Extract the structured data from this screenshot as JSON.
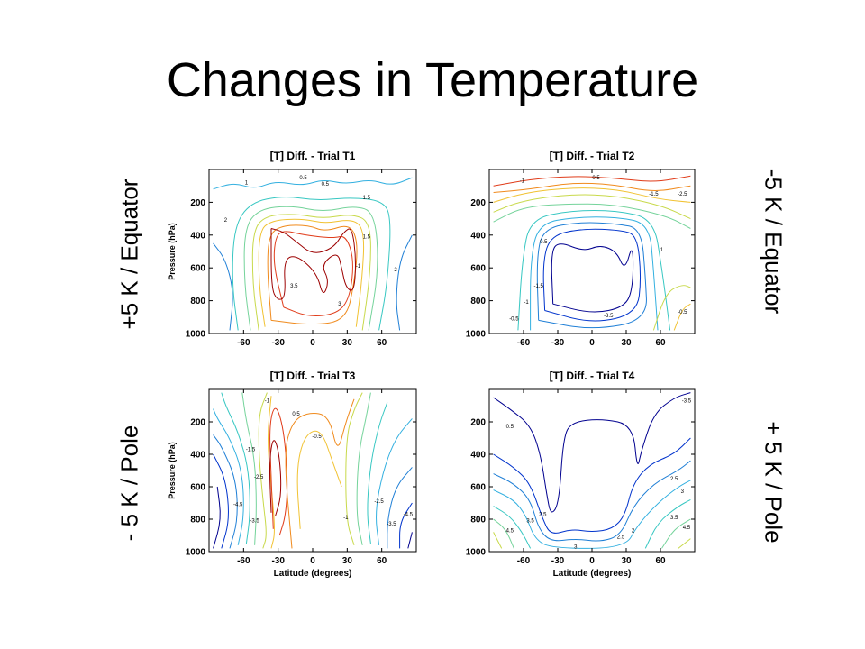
{
  "slide": {
    "title": "Changes in Temperature",
    "labels": {
      "top_left": "+5 K / Equator",
      "top_right": "-5 K / Equator",
      "bottom_left": "- 5 K / Pole",
      "bottom_right": "+ 5 K / Pole"
    }
  },
  "colors": {
    "palette": [
      "#00008f",
      "#0033cc",
      "#1f7fd6",
      "#33b0e0",
      "#37c7c2",
      "#74d39a",
      "#c8d94a",
      "#f1c232",
      "#f08a1c",
      "#e03c1a",
      "#9c0000"
    ]
  },
  "chart_data": [
    {
      "type": "contour",
      "title": "[T] Diff. - Trial T1",
      "xlabel": "",
      "ylabel": "Pressure (hPa)",
      "xticks": [
        -60,
        -30,
        0,
        30,
        60
      ],
      "yticks": [
        200,
        400,
        600,
        800,
        1000
      ],
      "xlim": [
        -90,
        90
      ],
      "ylim": [
        1000,
        0
      ],
      "y_reversed": true,
      "contour_labels": [
        "-0.5",
        "0.5",
        "1",
        "1.5",
        "2",
        "3",
        "3.5",
        "-1",
        "1.5",
        "2"
      ]
    },
    {
      "type": "contour",
      "title": "[T] Diff. - Trial T2",
      "xlabel": "",
      "ylabel": "",
      "xticks": [
        -60,
        -30,
        0,
        30,
        60
      ],
      "yticks": [
        200,
        400,
        600,
        800,
        1000
      ],
      "xlim": [
        -90,
        90
      ],
      "ylim": [
        1000,
        0
      ],
      "y_reversed": true,
      "contour_labels": [
        "-1",
        "0.5",
        "-1.5",
        "-2.5",
        "-0.5",
        "1",
        "-1.5",
        "-1",
        "-0.5",
        "-3.5",
        "-0.5"
      ]
    },
    {
      "type": "contour",
      "title": "[T] Diff. - Trial T3",
      "xlabel": "Latitude (degrees)",
      "ylabel": "Pressure (hPa)",
      "xticks": [
        -60,
        -30,
        0,
        30,
        60
      ],
      "yticks": [
        200,
        400,
        600,
        800,
        1000
      ],
      "xlim": [
        -90,
        90
      ],
      "ylim": [
        1000,
        0
      ],
      "y_reversed": true,
      "contour_labels": [
        "-1",
        "0.5",
        "-0.5",
        "-1.5",
        "-2.5",
        "-3.5",
        "-4.5",
        "-1",
        "-2.5",
        "-3.5",
        "-4.5"
      ]
    },
    {
      "type": "contour",
      "title": "[T] Diff. - Trial T4",
      "xlabel": "Latitude (degrees)",
      "ylabel": "",
      "xticks": [
        -60,
        -30,
        0,
        30,
        60
      ],
      "yticks": [
        200,
        400,
        600,
        800,
        1000
      ],
      "xlim": [
        -90,
        90
      ],
      "ylim": [
        1000,
        0
      ],
      "y_reversed": true,
      "contour_labels": [
        "0.5",
        "-3.5",
        "2.5",
        "3",
        "3.5",
        "4.5",
        "4.5",
        "3.5",
        "2.5",
        "3",
        "2.5",
        "2"
      ]
    }
  ]
}
